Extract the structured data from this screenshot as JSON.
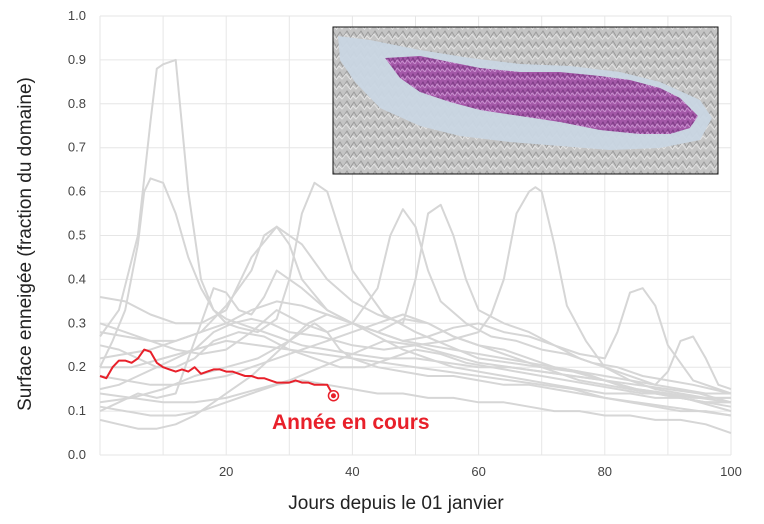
{
  "chart_data": {
    "type": "line",
    "title": "",
    "xlabel": "Jours depuis le 01 janvier",
    "ylabel": "Surface enneigée (fraction du domaine)",
    "xlim": [
      0,
      100
    ],
    "ylim": [
      0,
      1
    ],
    "x_ticks": [
      "20",
      "40",
      "60",
      "80",
      "100"
    ],
    "y_ticks": [
      "0.0",
      "0.1",
      "0.2",
      "0.3",
      "0.4",
      "0.5",
      "0.6",
      "0.7",
      "0.8",
      "0.9",
      "1.0"
    ],
    "grid": true,
    "legend": "none",
    "colors": {
      "current": "#e8202a",
      "history": "#d6d6d6",
      "grid": "#e6e6e6"
    },
    "annotation": {
      "text": "Année en cours",
      "color": "#e8202a"
    },
    "current_year": {
      "x": [
        0,
        1,
        2,
        3,
        4,
        5,
        6,
        7,
        8,
        9,
        10,
        11,
        12,
        13,
        14,
        15,
        16,
        17,
        18,
        19,
        20,
        21,
        22,
        23,
        24,
        25,
        26,
        27,
        28,
        29,
        30,
        31,
        32,
        33,
        34,
        35,
        36,
        37
      ],
      "y": [
        0.18,
        0.175,
        0.2,
        0.215,
        0.215,
        0.21,
        0.22,
        0.24,
        0.235,
        0.21,
        0.2,
        0.195,
        0.19,
        0.195,
        0.19,
        0.2,
        0.185,
        0.19,
        0.195,
        0.195,
        0.19,
        0.19,
        0.185,
        0.18,
        0.18,
        0.175,
        0.175,
        0.17,
        0.165,
        0.165,
        0.165,
        0.17,
        0.165,
        0.165,
        0.16,
        0.16,
        0.16,
        0.135
      ]
    },
    "history_series": [
      {
        "x": [
          0,
          3,
          6,
          8,
          9,
          10,
          12,
          14,
          16,
          18,
          20,
          24,
          28,
          32,
          36,
          40,
          45,
          50,
          55,
          60,
          65,
          70,
          75,
          80,
          85,
          90,
          95,
          100
        ],
        "y": [
          0.27,
          0.33,
          0.5,
          0.76,
          0.88,
          0.89,
          0.9,
          0.6,
          0.4,
          0.33,
          0.31,
          0.29,
          0.27,
          0.25,
          0.24,
          0.23,
          0.22,
          0.22,
          0.21,
          0.2,
          0.2,
          0.19,
          0.18,
          0.17,
          0.16,
          0.15,
          0.14,
          0.12
        ]
      },
      {
        "x": [
          0,
          2,
          4,
          6,
          7,
          8,
          10,
          12,
          14,
          16,
          18,
          20,
          22,
          25,
          28,
          30,
          32,
          34,
          36,
          40,
          45,
          50,
          55,
          60,
          65,
          70,
          75,
          80,
          85,
          90,
          95,
          100
        ],
        "y": [
          0.2,
          0.26,
          0.33,
          0.48,
          0.6,
          0.63,
          0.62,
          0.55,
          0.45,
          0.38,
          0.33,
          0.3,
          0.29,
          0.28,
          0.31,
          0.4,
          0.55,
          0.62,
          0.6,
          0.42,
          0.32,
          0.28,
          0.25,
          0.22,
          0.21,
          0.2,
          0.19,
          0.17,
          0.15,
          0.14,
          0.12,
          0.1
        ]
      },
      {
        "x": [
          0,
          3,
          6,
          9,
          12,
          15,
          18,
          21,
          24,
          27,
          30,
          35,
          40,
          45,
          50,
          55,
          60,
          62,
          64,
          66,
          68,
          69,
          70,
          72,
          74,
          77,
          80,
          84,
          88,
          92,
          96,
          100
        ],
        "y": [
          0.15,
          0.16,
          0.18,
          0.2,
          0.22,
          0.24,
          0.28,
          0.3,
          0.31,
          0.3,
          0.28,
          0.27,
          0.25,
          0.24,
          0.25,
          0.26,
          0.28,
          0.32,
          0.4,
          0.55,
          0.6,
          0.61,
          0.6,
          0.48,
          0.34,
          0.26,
          0.2,
          0.17,
          0.15,
          0.14,
          0.13,
          0.13
        ]
      },
      {
        "x": [
          0,
          4,
          8,
          12,
          16,
          20,
          24,
          28,
          32,
          36,
          40,
          44,
          48,
          50,
          52,
          54,
          56,
          58,
          60,
          64,
          68,
          72,
          76,
          80,
          84,
          88,
          92,
          96,
          100
        ],
        "y": [
          0.36,
          0.35,
          0.32,
          0.3,
          0.3,
          0.33,
          0.45,
          0.52,
          0.48,
          0.4,
          0.35,
          0.32,
          0.3,
          0.4,
          0.55,
          0.57,
          0.5,
          0.4,
          0.33,
          0.3,
          0.28,
          0.25,
          0.22,
          0.2,
          0.18,
          0.16,
          0.15,
          0.14,
          0.14
        ]
      },
      {
        "x": [
          0,
          4,
          8,
          12,
          16,
          20,
          24,
          26,
          28,
          30,
          32,
          36,
          40,
          44,
          48,
          52,
          56,
          60,
          64,
          68,
          72,
          76,
          80,
          82,
          84,
          86,
          88,
          90,
          94,
          100
        ],
        "y": [
          0.28,
          0.27,
          0.26,
          0.26,
          0.28,
          0.34,
          0.42,
          0.5,
          0.52,
          0.48,
          0.4,
          0.33,
          0.3,
          0.28,
          0.26,
          0.27,
          0.29,
          0.3,
          0.28,
          0.27,
          0.25,
          0.23,
          0.22,
          0.28,
          0.37,
          0.38,
          0.34,
          0.25,
          0.17,
          0.14
        ]
      },
      {
        "x": [
          0,
          3,
          6,
          9,
          12,
          14,
          16,
          18,
          20,
          22,
          24,
          26,
          28,
          32,
          36,
          40,
          44,
          48,
          52,
          56,
          60,
          64,
          68,
          72,
          76,
          80,
          84,
          88,
          92,
          96,
          100
        ],
        "y": [
          0.1,
          0.12,
          0.14,
          0.13,
          0.14,
          0.22,
          0.3,
          0.38,
          0.37,
          0.33,
          0.32,
          0.36,
          0.42,
          0.38,
          0.33,
          0.3,
          0.28,
          0.31,
          0.3,
          0.27,
          0.25,
          0.24,
          0.22,
          0.2,
          0.19,
          0.17,
          0.15,
          0.14,
          0.13,
          0.12,
          0.11
        ]
      },
      {
        "x": [
          0,
          4,
          8,
          12,
          16,
          20,
          24,
          28,
          32,
          36,
          40,
          44,
          46,
          48,
          50,
          52,
          54,
          58,
          62,
          66,
          70,
          74,
          78,
          82,
          86,
          90,
          94,
          100
        ],
        "y": [
          0.3,
          0.28,
          0.26,
          0.24,
          0.23,
          0.24,
          0.28,
          0.33,
          0.3,
          0.28,
          0.3,
          0.38,
          0.5,
          0.56,
          0.52,
          0.42,
          0.35,
          0.3,
          0.27,
          0.26,
          0.24,
          0.23,
          0.21,
          0.2,
          0.18,
          0.17,
          0.16,
          0.14
        ]
      },
      {
        "x": [
          0,
          5,
          10,
          15,
          20,
          25,
          30,
          34,
          36,
          38,
          40,
          44,
          48,
          52,
          56,
          60,
          64,
          68,
          72,
          76,
          80,
          84,
          88,
          92,
          96,
          100
        ],
        "y": [
          0.12,
          0.13,
          0.15,
          0.18,
          0.2,
          0.22,
          0.26,
          0.3,
          0.28,
          0.24,
          0.22,
          0.2,
          0.19,
          0.18,
          0.18,
          0.17,
          0.16,
          0.16,
          0.15,
          0.14,
          0.13,
          0.12,
          0.11,
          0.1,
          0.1,
          0.09
        ]
      },
      {
        "x": [
          0,
          4,
          8,
          12,
          16,
          20,
          24,
          28,
          32,
          36,
          40,
          44,
          48,
          52,
          56,
          60,
          64,
          68,
          72,
          76,
          80,
          84,
          88,
          90,
          92,
          94,
          96,
          98,
          100
        ],
        "y": [
          0.22,
          0.23,
          0.24,
          0.26,
          0.28,
          0.3,
          0.33,
          0.35,
          0.34,
          0.32,
          0.3,
          0.28,
          0.26,
          0.25,
          0.24,
          0.23,
          0.22,
          0.21,
          0.2,
          0.19,
          0.18,
          0.17,
          0.16,
          0.19,
          0.26,
          0.27,
          0.22,
          0.16,
          0.15
        ]
      },
      {
        "x": [
          0,
          4,
          8,
          12,
          16,
          20,
          24,
          28,
          32,
          36,
          40,
          44,
          48,
          52,
          56,
          60,
          64,
          68,
          72,
          76,
          80,
          84,
          88,
          92,
          96,
          100
        ],
        "y": [
          0.11,
          0.1,
          0.09,
          0.09,
          0.1,
          0.12,
          0.14,
          0.16,
          0.17,
          0.16,
          0.15,
          0.14,
          0.14,
          0.13,
          0.13,
          0.12,
          0.12,
          0.11,
          0.1,
          0.1,
          0.09,
          0.09,
          0.08,
          0.08,
          0.07,
          0.05
        ]
      },
      {
        "x": [
          0,
          5,
          10,
          15,
          20,
          25,
          30,
          35,
          40,
          45,
          50,
          55,
          60,
          65,
          70,
          75,
          80,
          85,
          90,
          95,
          100
        ],
        "y": [
          0.2,
          0.2,
          0.22,
          0.24,
          0.26,
          0.25,
          0.24,
          0.23,
          0.22,
          0.21,
          0.2,
          0.19,
          0.18,
          0.17,
          0.16,
          0.15,
          0.13,
          0.12,
          0.11,
          0.1,
          0.09
        ]
      },
      {
        "x": [
          0,
          3,
          6,
          9,
          12,
          15,
          18,
          21,
          24,
          27,
          30,
          33,
          36,
          40,
          44,
          48,
          52,
          56,
          60,
          64,
          68,
          72,
          76,
          80,
          84,
          88,
          92,
          96,
          100
        ],
        "y": [
          0.08,
          0.07,
          0.06,
          0.06,
          0.07,
          0.09,
          0.12,
          0.15,
          0.18,
          0.22,
          0.26,
          0.3,
          0.32,
          0.3,
          0.27,
          0.24,
          0.22,
          0.2,
          0.19,
          0.18,
          0.17,
          0.16,
          0.15,
          0.14,
          0.14,
          0.13,
          0.13,
          0.12,
          0.12
        ]
      },
      {
        "x": [
          0,
          4,
          8,
          12,
          16,
          20,
          24,
          28,
          32,
          36,
          40,
          44,
          48,
          52,
          56,
          60,
          64,
          68,
          72,
          76,
          80,
          84,
          88,
          92,
          96,
          100
        ],
        "y": [
          0.18,
          0.17,
          0.16,
          0.16,
          0.17,
          0.18,
          0.2,
          0.22,
          0.24,
          0.26,
          0.28,
          0.3,
          0.32,
          0.3,
          0.27,
          0.25,
          0.23,
          0.21,
          0.19,
          0.17,
          0.16,
          0.15,
          0.14,
          0.13,
          0.12,
          0.12
        ]
      },
      {
        "x": [
          0,
          3,
          6,
          9,
          12,
          15,
          18,
          22,
          26,
          30,
          34,
          38,
          42,
          46,
          50,
          54,
          58,
          62,
          66,
          70,
          74,
          78,
          82,
          86,
          90,
          94,
          100
        ],
        "y": [
          0.25,
          0.24,
          0.22,
          0.2,
          0.2,
          0.22,
          0.26,
          0.28,
          0.27,
          0.24,
          0.22,
          0.2,
          0.2,
          0.22,
          0.24,
          0.23,
          0.21,
          0.2,
          0.19,
          0.18,
          0.17,
          0.16,
          0.15,
          0.14,
          0.14,
          0.13,
          0.13
        ]
      },
      {
        "x": [
          0,
          5,
          10,
          15,
          20,
          25,
          30,
          35,
          40,
          45,
          50,
          55,
          60,
          65,
          70,
          75,
          80,
          85,
          90,
          95,
          100
        ],
        "y": [
          0.14,
          0.13,
          0.12,
          0.12,
          0.13,
          0.15,
          0.17,
          0.2,
          0.23,
          0.26,
          0.25,
          0.23,
          0.21,
          0.2,
          0.19,
          0.18,
          0.17,
          0.15,
          0.14,
          0.13,
          0.12
        ]
      }
    ]
  }
}
